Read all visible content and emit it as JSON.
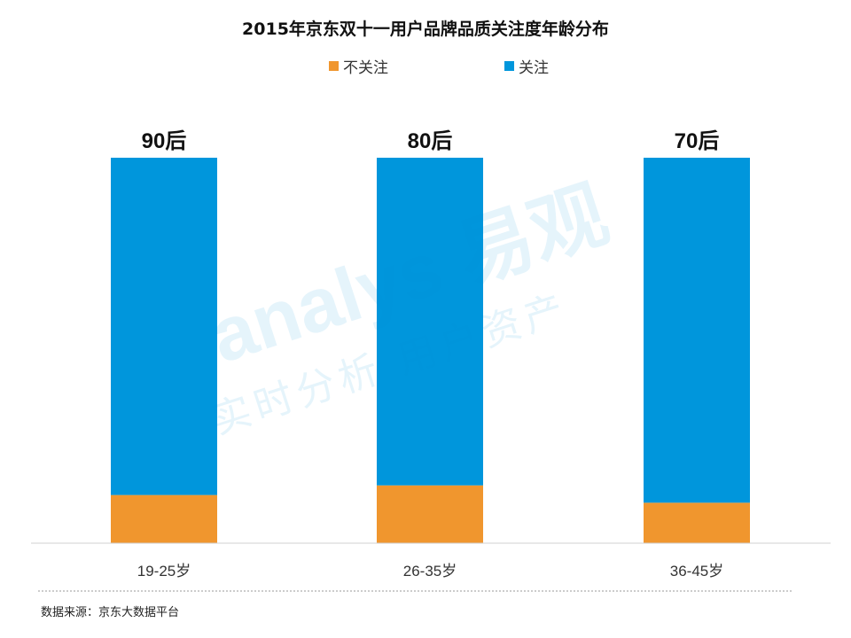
{
  "chart_data": {
    "type": "bar",
    "stacked": true,
    "normalized": true,
    "title": "2015年京东双十一用户品牌品质关注度年龄分布",
    "categories": [
      "19-25岁",
      "26-35岁",
      "36-45岁"
    ],
    "group_labels": [
      "90后",
      "80后",
      "70后"
    ],
    "series": [
      {
        "name": "不关注",
        "color": "#F0962E",
        "values": [
          12.5,
          15,
          10.5
        ]
      },
      {
        "name": "关注",
        "color": "#0096DC",
        "values": [
          87.5,
          85,
          89.5
        ]
      }
    ],
    "ylim": [
      0,
      100
    ],
    "grid": false,
    "legend_position": "top-center",
    "source": "数据来源：京东大数据平台"
  },
  "watermark": {
    "line1": "analys 易观",
    "line2": "实时分析 用户资产 "
  }
}
